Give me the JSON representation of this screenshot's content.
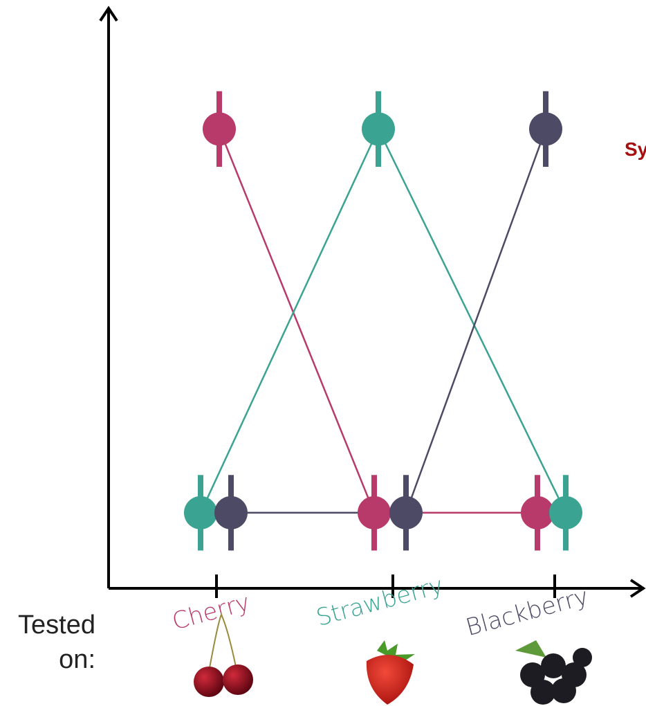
{
  "chart_data": {
    "type": "line",
    "categories": [
      "Cherry",
      "Strawberry",
      "Blackberry"
    ],
    "series": [
      {
        "color": "#b83a6a",
        "values": [
          0.79,
          0.13,
          0.13
        ],
        "errors": [
          0.065,
          0.065,
          0.065
        ]
      },
      {
        "color": "#3aa391",
        "values": [
          0.13,
          0.79,
          0.13
        ],
        "errors": [
          0.065,
          0.065,
          0.065
        ]
      },
      {
        "color": "#4d4a66",
        "values": [
          0.13,
          0.13,
          0.79
        ],
        "errors": [
          0.065,
          0.065,
          0.065
        ]
      }
    ],
    "ylim": [
      0,
      1
    ],
    "x_label": "Tested on:",
    "annotation": "Sy"
  }
}
